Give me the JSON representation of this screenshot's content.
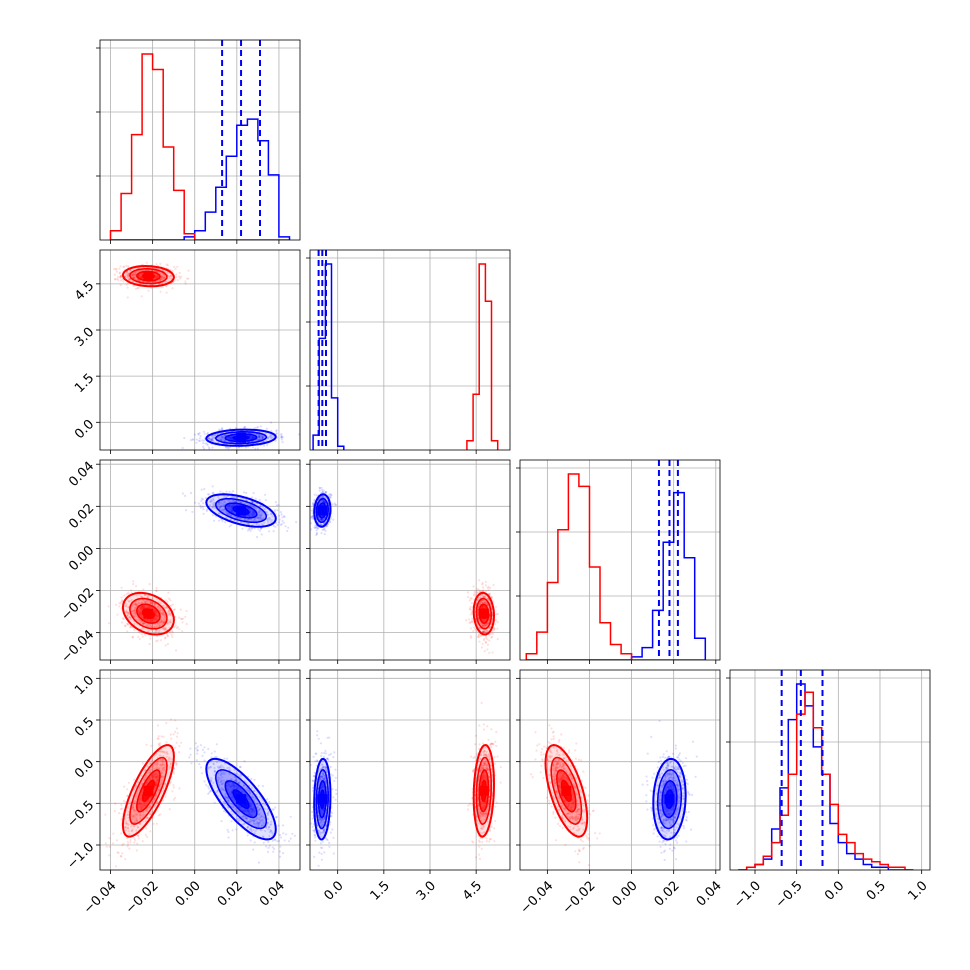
{
  "colors": {
    "red": "#ff0000",
    "blue": "#0000ff",
    "grid": "#b0b0b0",
    "axis": "#000000"
  },
  "tick_labels": {
    "p0": [
      "−0.04",
      "−0.02",
      "0.00",
      "0.02",
      "0.04"
    ],
    "p1": [
      "0.0",
      "1.5",
      "3.0",
      "4.5"
    ],
    "p2": [
      "−0.04",
      "−0.02",
      "0.00",
      "0.02",
      "0.04"
    ],
    "p3": [
      "−1.0",
      "−0.5",
      "0.0",
      "0.5",
      "1.0"
    ]
  },
  "chart_data": {
    "type": "corner",
    "grid": true,
    "parameters": [
      {
        "index": 0,
        "range": [
          -0.045,
          0.05
        ],
        "ticks": [
          -0.04,
          -0.02,
          0.0,
          0.02,
          0.04
        ]
      },
      {
        "index": 1,
        "range": [
          -0.9,
          5.6
        ],
        "ticks": [
          0.0,
          1.5,
          3.0,
          4.5
        ]
      },
      {
        "index": 2,
        "range": [
          -0.053,
          0.042
        ],
        "ticks": [
          -0.04,
          -0.02,
          0.0,
          0.02,
          0.04
        ]
      },
      {
        "index": 3,
        "range": [
          -1.3,
          1.1
        ],
        "ticks": [
          -1.0,
          -0.5,
          0.0,
          0.5,
          1.0
        ]
      }
    ],
    "series": [
      {
        "color": "#ff0000",
        "means": [
          -0.022,
          4.75,
          -0.031,
          -0.35
        ],
        "sds": [
          0.0055,
          0.15,
          0.0045,
          0.25
        ],
        "correlations": {
          "0-1": -0.1,
          "0-2": -0.3,
          "0-3": 0.75,
          "1-2": -0.1,
          "1-3": 0.15,
          "2-3": -0.6
        }
      },
      {
        "color": "#0000ff",
        "means": [
          0.022,
          -0.5,
          0.018,
          -0.45
        ],
        "sds": [
          0.0075,
          0.12,
          0.0035,
          0.22
        ],
        "correlations": {
          "0-1": 0.1,
          "0-2": -0.5,
          "0-3": -0.75,
          "1-2": 0.1,
          "1-3": 0.1,
          "2-3": 0.1
        }
      }
    ],
    "quantile_lines": {
      "color": "#0000ff",
      "style": "dashed",
      "values": [
        [
          0.013,
          0.022,
          0.031
        ],
        [
          -0.62,
          -0.5,
          -0.38
        ],
        [
          0.013,
          0.018,
          0.022
        ],
        [
          -0.68,
          -0.45,
          -0.19
        ]
      ]
    },
    "histograms": [
      {
        "param": 0,
        "bin_edges": [
          -0.04,
          -0.035,
          -0.03,
          -0.025,
          -0.02,
          -0.015,
          -0.01,
          -0.005,
          0.0,
          0.005,
          0.01,
          0.015,
          0.02,
          0.025,
          0.03,
          0.035,
          0.04,
          0.045
        ],
        "red": [
          3,
          15,
          34,
          60,
          55,
          30,
          16,
          2,
          0,
          0,
          0,
          0,
          0,
          0,
          0,
          0,
          0
        ],
        "blue": [
          0,
          0,
          0,
          0,
          0,
          0,
          0,
          1,
          3,
          9,
          17,
          27,
          37,
          39,
          32,
          21,
          1
        ]
      },
      {
        "param": 1,
        "bin_edges": [
          -0.8,
          -0.6,
          -0.4,
          -0.2,
          0.0,
          0.2
        ],
        "blue": [
          8,
          60,
          100,
          28,
          2
        ],
        "red_bin_edges": [
          4.2,
          4.4,
          4.6,
          4.8,
          5.0,
          5.2
        ],
        "red": [
          5,
          30,
          100,
          80,
          5
        ]
      },
      {
        "param": 2,
        "bin_edges": [
          -0.05,
          -0.045,
          -0.04,
          -0.035,
          -0.03,
          -0.025,
          -0.02,
          -0.015,
          -0.01,
          -0.005,
          0.0,
          0.005,
          0.01,
          0.015,
          0.02,
          0.025,
          0.03,
          0.035
        ],
        "red": [
          2,
          9,
          25,
          42,
          60,
          56,
          30,
          12,
          5,
          2,
          0,
          0,
          0,
          0,
          0,
          0,
          0
        ],
        "blue": [
          0,
          0,
          0,
          0,
          0,
          0,
          0,
          0,
          0,
          0,
          1,
          4,
          16,
          38,
          54,
          33,
          7
        ]
      },
      {
        "param": 3,
        "bin_edges": [
          -1.2,
          -1.1,
          -1.0,
          -0.9,
          -0.8,
          -0.7,
          -0.6,
          -0.5,
          -0.4,
          -0.3,
          -0.2,
          -0.1,
          0.0,
          0.1,
          0.2,
          0.3,
          0.4,
          0.5,
          0.6,
          0.7,
          0.8,
          0.9
        ],
        "red": [
          0,
          1,
          2,
          5,
          10,
          20,
          35,
          57,
          65,
          52,
          35,
          24,
          13,
          10,
          6,
          4,
          3,
          2,
          1,
          1,
          0
        ],
        "blue": [
          0,
          1,
          2,
          4,
          15,
          30,
          55,
          68,
          60,
          45,
          35,
          17,
          10,
          6,
          4,
          2,
          1,
          1,
          0,
          0,
          0
        ]
      }
    ]
  }
}
